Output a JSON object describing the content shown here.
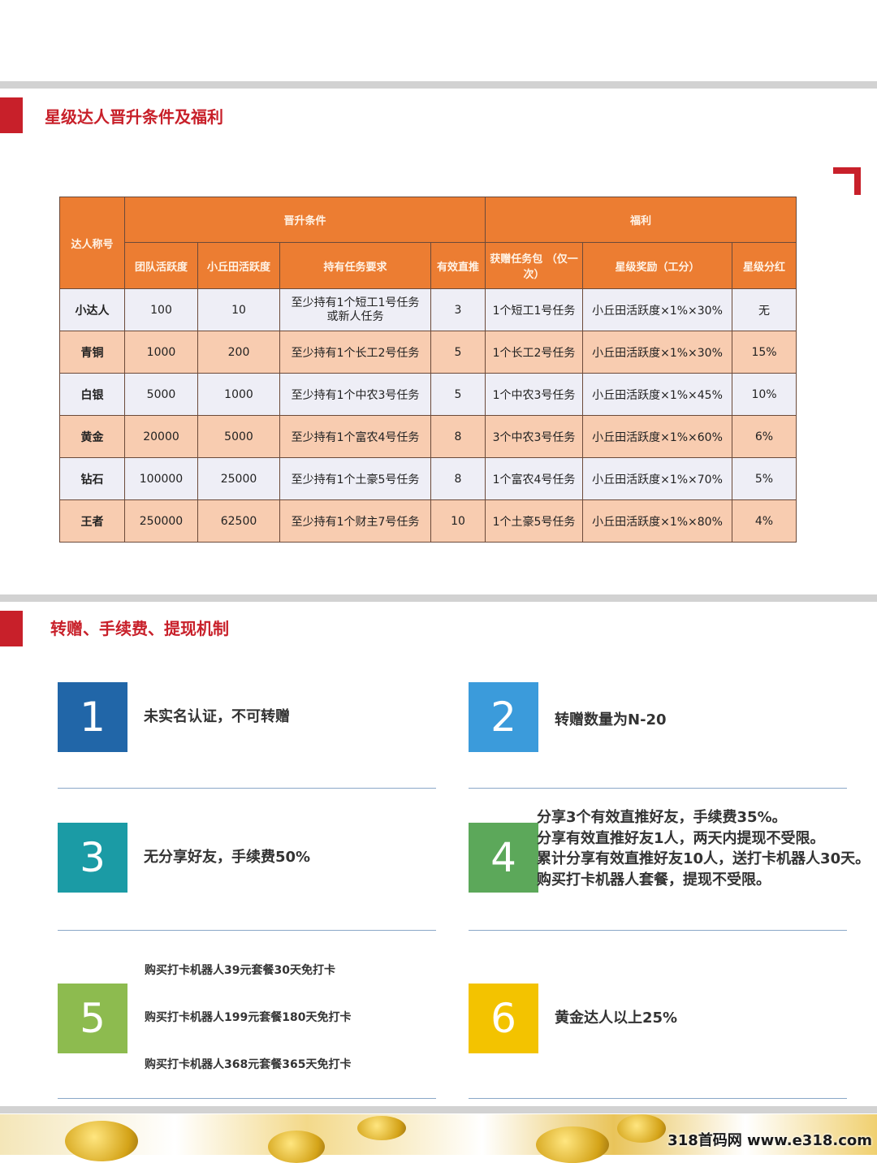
{
  "section1": {
    "title": "星级达人晋升条件及福利"
  },
  "table": {
    "header_group": {
      "name": "达人称号",
      "promotion": "晋升条件",
      "benefits": "福利"
    },
    "columns": [
      "团队活跃度",
      "小丘田活跃度",
      "持有任务要求",
      "有效直推",
      "获赠任务包 （仅一次）",
      "星级奖励（工分）",
      "星级分红"
    ],
    "rows": [
      [
        "小达人",
        "100",
        "10",
        "至少持有1个短工1号任务或新人任务",
        "3",
        "1个短工1号任务",
        "小丘田活跃度×1%×30%",
        "无"
      ],
      [
        "青铜",
        "1000",
        "200",
        "至少持有1个长工2号任务",
        "5",
        "1个长工2号任务",
        "小丘田活跃度×1%×30%",
        "15%"
      ],
      [
        "白银",
        "5000",
        "1000",
        "至少持有1个中农3号任务",
        "5",
        "1个中农3号任务",
        "小丘田活跃度×1%×45%",
        "10%"
      ],
      [
        "黄金",
        "20000",
        "5000",
        "至少持有1个富农4号任务",
        "8",
        "3个中农3号任务",
        "小丘田活跃度×1%×60%",
        "6%"
      ],
      [
        "钻石",
        "100000",
        "25000",
        "至少持有1个土豪5号任务",
        "8",
        "1个富农4号任务",
        "小丘田活跃度×1%×70%",
        "5%"
      ],
      [
        "王者",
        "250000",
        "62500",
        "至少持有1个财主7号任务",
        "10",
        "1个土豪5号任务",
        "小丘田活跃度×1%×80%",
        "4%"
      ]
    ]
  },
  "section2": {
    "title": "转赠、手续费、提现机制"
  },
  "items": [
    {
      "num": "1",
      "color": "#2166a8",
      "lines": [
        "未实名认证，不可转赠"
      ]
    },
    {
      "num": "2",
      "color": "#3b9bdb",
      "lines": [
        "转赠数量为N-20"
      ]
    },
    {
      "num": "3",
      "color": "#1b9ba5",
      "lines": [
        "无分享好友，手续费50%"
      ]
    },
    {
      "num": "4",
      "color": "#5ca85a",
      "lines": [
        "分享3个有效直推好友，手续费35%。",
        "分享有效直推好友1人，两天内提现不受限。",
        "累计分享有效直推好友10人，送打卡机器人30天。",
        "购买打卡机器人套餐，提现不受限。"
      ]
    },
    {
      "num": "5",
      "color": "#8dbb4f",
      "lines": [
        "购买打卡机器人39元套餐30天免打卡",
        "购买打卡机器人199元套餐180天免打卡",
        "购买打卡机器人368元套餐365天免打卡"
      ]
    },
    {
      "num": "6",
      "color": "#f3c300",
      "lines": [
        "黄金达人以上25%"
      ]
    }
  ],
  "watermark": "318首码网 www.e318.com",
  "colors": {
    "accent_red": "#c8202a",
    "header_orange": "#ec7d32",
    "row_peach": "#f8ccb0",
    "row_light": "#eeeef6"
  }
}
